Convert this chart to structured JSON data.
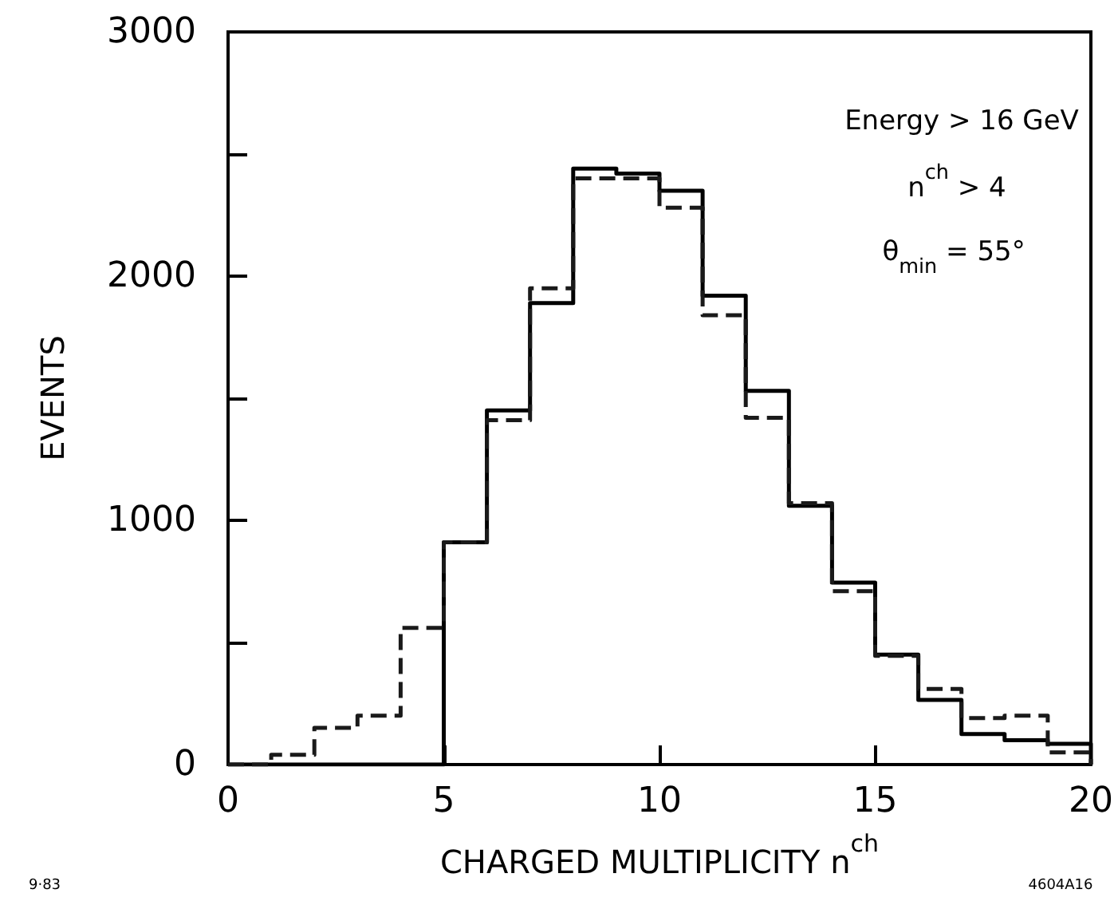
{
  "chart_data": {
    "type": "histogram",
    "xlabel": "CHARGED MULTIPLICITY n$^{ch}$",
    "ylabel": "EVENTS",
    "bins": [
      0,
      1,
      2,
      3,
      4,
      5,
      6,
      7,
      8,
      9,
      10,
      11,
      12,
      13,
      14,
      15,
      16,
      17,
      18,
      19,
      20
    ],
    "series": [
      {
        "color": "#000000",
        "line_style": "solid",
        "values": [
          0,
          0,
          0,
          0,
          0,
          910,
          1450,
          1890,
          2440,
          2420,
          2350,
          1920,
          1530,
          1060,
          745,
          450,
          265,
          125,
          100,
          85
        ]
      },
      {
        "color": "#1a1a1a",
        "line_style": "dashed",
        "values": [
          0,
          40,
          150,
          200,
          560,
          910,
          1410,
          1950,
          2400,
          2400,
          2280,
          1840,
          1420,
          1070,
          710,
          445,
          310,
          190,
          200,
          50
        ]
      }
    ],
    "xlim": [
      0,
      20
    ],
    "xticks": [
      0,
      5,
      10,
      15,
      20
    ],
    "ylim": [
      0,
      3000
    ],
    "yticks": [
      0,
      {
        "value": 500,
        "label": null
      },
      1000,
      {
        "value": 1500,
        "label": null
      },
      2000,
      {
        "value": 2500,
        "label": null
      },
      3000
    ],
    "grid": false,
    "annotations": [
      "Energy > 16 GeV",
      "n$^{ch}$ > 4",
      "θ$_{min}$ = 55°",
      "9·83",
      "4604A16"
    ]
  }
}
